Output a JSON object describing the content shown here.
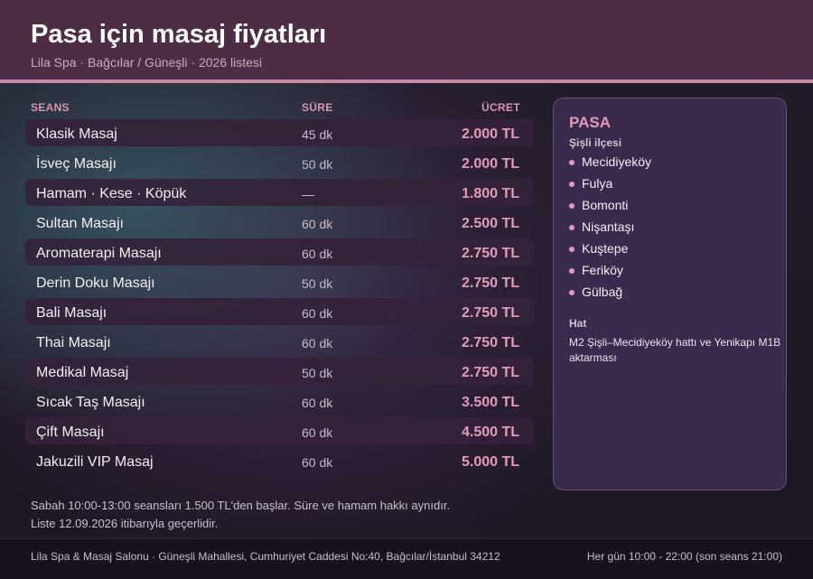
{
  "header": {
    "title": "Pasa için masaj fiyatları",
    "subtitle": "Lila Spa · Bağcılar / Güneşli · 2026 listesi"
  },
  "table": {
    "columns": {
      "session": "SEANS",
      "duration": "SÜRE",
      "price": "ÜCRET"
    },
    "rows": [
      {
        "name": "Klasik Masaj",
        "duration": "45 dk",
        "price": "2.000 TL"
      },
      {
        "name": "İsveç Masajı",
        "duration": "50 dk",
        "price": "2.000 TL"
      },
      {
        "name": "Hamam · Kese · Köpük",
        "duration": "—",
        "price": "1.800 TL"
      },
      {
        "name": "Sultan Masajı",
        "duration": "60 dk",
        "price": "2.500 TL"
      },
      {
        "name": "Aromaterapi Masajı",
        "duration": "60 dk",
        "price": "2.750 TL"
      },
      {
        "name": "Derin Doku Masajı",
        "duration": "50 dk",
        "price": "2.750 TL"
      },
      {
        "name": "Bali Masajı",
        "duration": "60 dk",
        "price": "2.750 TL"
      },
      {
        "name": "Thai Masajı",
        "duration": "60 dk",
        "price": "2.750 TL"
      },
      {
        "name": "Medikal Masaj",
        "duration": "50 dk",
        "price": "2.750 TL"
      },
      {
        "name": "Sıcak Taş Masajı",
        "duration": "60 dk",
        "price": "3.500 TL"
      },
      {
        "name": "Çift Masajı",
        "duration": "60 dk",
        "price": "4.500 TL"
      },
      {
        "name": "Jakuzili VIP Masaj",
        "duration": "60 dk",
        "price": "5.000 TL"
      }
    ]
  },
  "sidebar": {
    "title": "PASA",
    "district": "Şişli ilçesi",
    "neighborhoods": [
      "Mecidiyeköy",
      "Fulya",
      "Bomonti",
      "Nişantaşı",
      "Kuştepe",
      "Feriköy",
      "Gülbağ"
    ],
    "line_title": "Hat",
    "line_text": "M2 Şişli–Mecidiyeköy hattı ve Yenikapı M1B aktarması"
  },
  "notes": {
    "line1": "Sabah 10:00-13:00 seansları 1.500 TL'den başlar. Süre ve hamam hakkı aynıdır.",
    "line2": "Liste 12.09.2026 itibarıyla geçerlidir."
  },
  "footer": {
    "address": "Lila Spa & Masaj Salonu · Güneşli Mahallesi, Cumhuriyet Caddesi No:40, Bağcılar/İstanbul 34212",
    "hours": "Her gün 10:00 - 22:00 (son seans 21:00)"
  },
  "colors": {
    "header_bg": "#4c2d45",
    "accent_pink": "#e39bbb",
    "header_rule": "#c58aa4",
    "sidebar_bg": "#3a2a4c"
  }
}
